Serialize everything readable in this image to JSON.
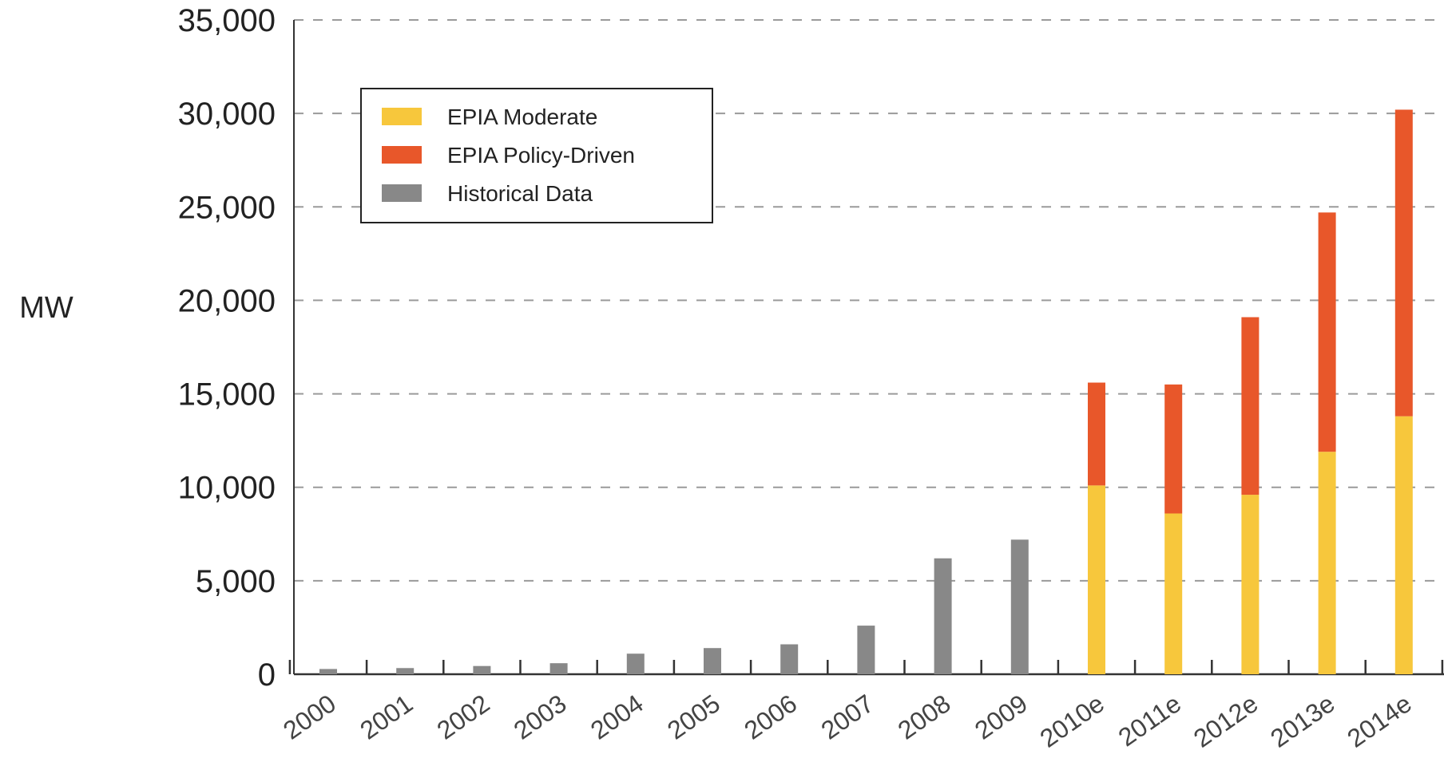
{
  "chart_data": {
    "type": "bar",
    "stacked": true,
    "ylabel": "MW",
    "xlabel": "",
    "title": "",
    "ylim": [
      0,
      35000
    ],
    "yticks": [
      0,
      5000,
      10000,
      15000,
      20000,
      25000,
      30000,
      35000
    ],
    "ytick_labels": [
      "0",
      "5,000",
      "10,000",
      "15,000",
      "20,000",
      "25,000",
      "30,000",
      "35,000"
    ],
    "grid": "horizontal dashed",
    "legend_position": "top-left",
    "categories": [
      "2000",
      "2001",
      "2002",
      "2003",
      "2004",
      "2005",
      "2006",
      "2007",
      "2008",
      "2009",
      "2010e",
      "2011e",
      "2012e",
      "2013e",
      "2014e"
    ],
    "series": [
      {
        "name": "EPIA Moderate",
        "color": "#f7c73c",
        "values": [
          null,
          null,
          null,
          null,
          null,
          null,
          null,
          null,
          null,
          null,
          10100,
          8600,
          9600,
          11900,
          13800
        ]
      },
      {
        "name": "EPIA Policy-Driven",
        "color": "#e8572a",
        "values": [
          null,
          null,
          null,
          null,
          null,
          null,
          null,
          null,
          null,
          null,
          5500,
          6900,
          9500,
          12800,
          16400
        ]
      },
      {
        "name": "Historical Data",
        "color": "#888888",
        "values": [
          280,
          330,
          440,
          590,
          1100,
          1400,
          1600,
          2600,
          6200,
          7200,
          null,
          null,
          null,
          null,
          null
        ]
      }
    ]
  }
}
